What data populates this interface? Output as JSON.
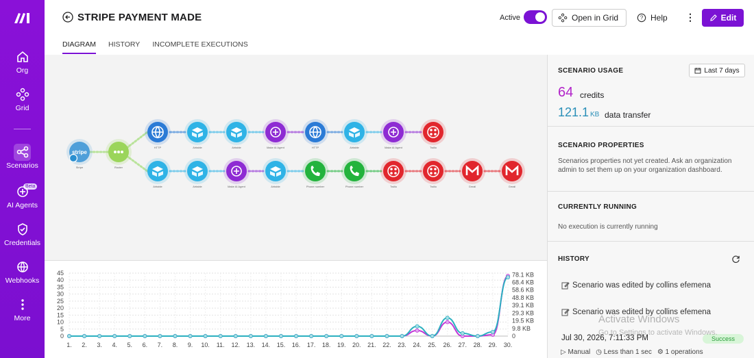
{
  "rail": {
    "items": [
      {
        "label": "Org",
        "icon": "home-icon"
      },
      {
        "label": "Grid",
        "icon": "grid-icon"
      },
      {
        "label": "Scenarios",
        "icon": "share-icon"
      },
      {
        "label": "AI Agents",
        "icon": "ai-agent-icon"
      },
      {
        "label": "Credentials",
        "icon": "shield-icon"
      },
      {
        "label": "Webhooks",
        "icon": "globe-icon"
      },
      {
        "label": "More",
        "icon": "more-vertical-icon"
      }
    ],
    "beta_badge": "Beta",
    "accent": "#8a11d8"
  },
  "header": {
    "title": "STRIPE PAYMENT MADE",
    "active_label": "Active",
    "open_in_grid": "Open in Grid",
    "help": "Help",
    "edit": "Edit",
    "tabs": [
      "DIAGRAM",
      "HISTORY",
      "INCOMPLETE EXECUTIONS"
    ]
  },
  "panel": {
    "usage": {
      "title": "SCENARIO USAGE",
      "range": "Last 7 days",
      "credits": "64",
      "credits_label": "credits",
      "transfer": "121.1",
      "transfer_unit": "KB",
      "transfer_label": "data transfer"
    },
    "properties": {
      "title": "SCENARIO PROPERTIES",
      "text": "Scenarios properties not yet created. Ask an organization admin to set them up on your organization dashboard."
    },
    "running": {
      "title": "CURRENTLY RUNNING",
      "text": "No execution is currently running"
    },
    "history": {
      "title": "HISTORY",
      "items": [
        "Scenario was edited by collins efemena",
        "Scenario was edited by collins efemena"
      ],
      "timestamp": "Jul 30, 2026, 7:11:33 PM",
      "status": "Success",
      "meta": [
        "Manual",
        "Less than 1 sec",
        "1 operations"
      ]
    }
  },
  "watermark": {
    "line1": "Activate Windows",
    "line2": "Go to Settings to activate Windows."
  },
  "diagram": {
    "trigger": {
      "label": "Stripe",
      "color": "#4f9fd9"
    },
    "router": {
      "label": "Router",
      "color": "#9bd55a"
    },
    "row1": [
      {
        "label": "HTTP",
        "color": "#2b7bd6",
        "icon": "globe-icon"
      },
      {
        "label": "Airtable",
        "color": "#2fb3e6",
        "icon": "box-icon"
      },
      {
        "label": "Airtable",
        "color": "#2fb3e6",
        "icon": "box-icon"
      },
      {
        "label": "Make AI Agent",
        "color": "#8e2bd3",
        "icon": "ai-agent-icon"
      },
      {
        "label": "HTTP",
        "color": "#2b7bd6",
        "icon": "globe-icon"
      },
      {
        "label": "Airtable",
        "color": "#2fb3e6",
        "icon": "box-icon"
      },
      {
        "label": "Make AI Agent",
        "color": "#8e2bd3",
        "icon": "ai-agent-icon"
      },
      {
        "label": "Twilio",
        "color": "#e1262d",
        "icon": "twilio-icon"
      }
    ],
    "row2": [
      {
        "label": "Airtable",
        "color": "#2fb3e6",
        "icon": "box-icon"
      },
      {
        "label": "Airtable",
        "color": "#2fb3e6",
        "icon": "box-icon"
      },
      {
        "label": "Make AI Agent",
        "color": "#8e2bd3",
        "icon": "ai-agent-icon"
      },
      {
        "label": "Airtable",
        "color": "#2fb3e6",
        "icon": "box-icon"
      },
      {
        "label": "Phone number",
        "color": "#23b33d",
        "icon": "phone-icon"
      },
      {
        "label": "Phone number",
        "color": "#23b33d",
        "icon": "phone-icon"
      },
      {
        "label": "Twilio",
        "color": "#e1262d",
        "icon": "twilio-icon"
      },
      {
        "label": "Twilio",
        "color": "#e1262d",
        "icon": "twilio-icon"
      },
      {
        "label": "Gmail",
        "color": "#e1262d",
        "icon": "gmail-icon"
      },
      {
        "label": "Gmail",
        "color": "#e1262d",
        "icon": "gmail-icon"
      }
    ]
  },
  "chart_data": {
    "type": "line",
    "categories": [
      "1.",
      "2.",
      "3.",
      "4.",
      "5.",
      "6.",
      "7.",
      "8.",
      "9.",
      "10.",
      "11.",
      "12.",
      "13.",
      "14.",
      "15.",
      "16.",
      "17.",
      "18.",
      "19.",
      "20.",
      "21.",
      "22.",
      "23.",
      "24.",
      "25.",
      "26.",
      "27.",
      "28.",
      "29.",
      "30."
    ],
    "left_ticks": [
      "0",
      "5",
      "10",
      "15",
      "20",
      "25",
      "30",
      "35",
      "40",
      "45"
    ],
    "right_ticks": [
      "0",
      "9.8 KB",
      "19.5 KB",
      "29.3 KB",
      "39.1 KB",
      "48.8 KB",
      "58.6 KB",
      "68.4 KB",
      "78.1 KB"
    ],
    "ylim": [
      0,
      45
    ],
    "series": [
      {
        "color": "#c236d6",
        "values": [
          0,
          0,
          0,
          0,
          0,
          0,
          0,
          0,
          0,
          0,
          0,
          0,
          0,
          0,
          0,
          0,
          0,
          0,
          0,
          0,
          0,
          0,
          0,
          4,
          0,
          10,
          0,
          0,
          1,
          43
        ]
      },
      {
        "color": "#2bb0c0",
        "values": [
          0,
          0,
          0,
          0,
          0,
          0,
          0,
          0,
          0,
          0,
          0,
          0,
          0,
          0,
          0,
          0,
          0,
          0,
          0,
          0,
          0,
          0,
          0,
          7,
          0,
          13,
          2,
          0,
          3,
          42
        ]
      }
    ],
    "grid": true
  }
}
